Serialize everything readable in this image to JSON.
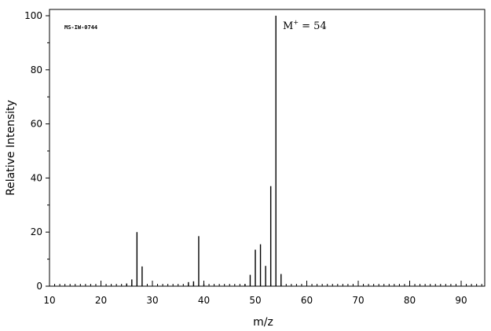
{
  "chart_data": {
    "type": "bar",
    "title": "",
    "code": "MS-IW-0744",
    "annotation": {
      "prefix": "M",
      "superscript": "+",
      "suffix": " = 54"
    },
    "xlabel": "m/z",
    "ylabel": "Relative Intensity",
    "xlim": [
      10,
      96
    ],
    "ylim": [
      0,
      100
    ],
    "x_ticks": [
      10,
      20,
      30,
      40,
      50,
      60,
      70,
      80,
      90
    ],
    "y_ticks": [
      0,
      20,
      40,
      60,
      80,
      100
    ],
    "grid": false,
    "x_tick_labels": [
      "10",
      "20",
      "30",
      "40",
      "50",
      "60",
      "70",
      "80",
      "90"
    ],
    "y_tick_labels": [
      "0",
      "20",
      "40",
      "60",
      "80",
      "100"
    ],
    "peaks": [
      {
        "mz": 25,
        "intensity": 1.0
      },
      {
        "mz": 26,
        "intensity": 2.5
      },
      {
        "mz": 27,
        "intensity": 20.0
      },
      {
        "mz": 28,
        "intensity": 7.3
      },
      {
        "mz": 37,
        "intensity": 1.5
      },
      {
        "mz": 38,
        "intensity": 1.8
      },
      {
        "mz": 39,
        "intensity": 18.5
      },
      {
        "mz": 40,
        "intensity": 0.8
      },
      {
        "mz": 48,
        "intensity": 0.8
      },
      {
        "mz": 49,
        "intensity": 4.2
      },
      {
        "mz": 50,
        "intensity": 13.5
      },
      {
        "mz": 51,
        "intensity": 15.5
      },
      {
        "mz": 52,
        "intensity": 7.5
      },
      {
        "mz": 53,
        "intensity": 37.0
      },
      {
        "mz": 54,
        "intensity": 100.0
      },
      {
        "mz": 55,
        "intensity": 4.5
      }
    ]
  }
}
